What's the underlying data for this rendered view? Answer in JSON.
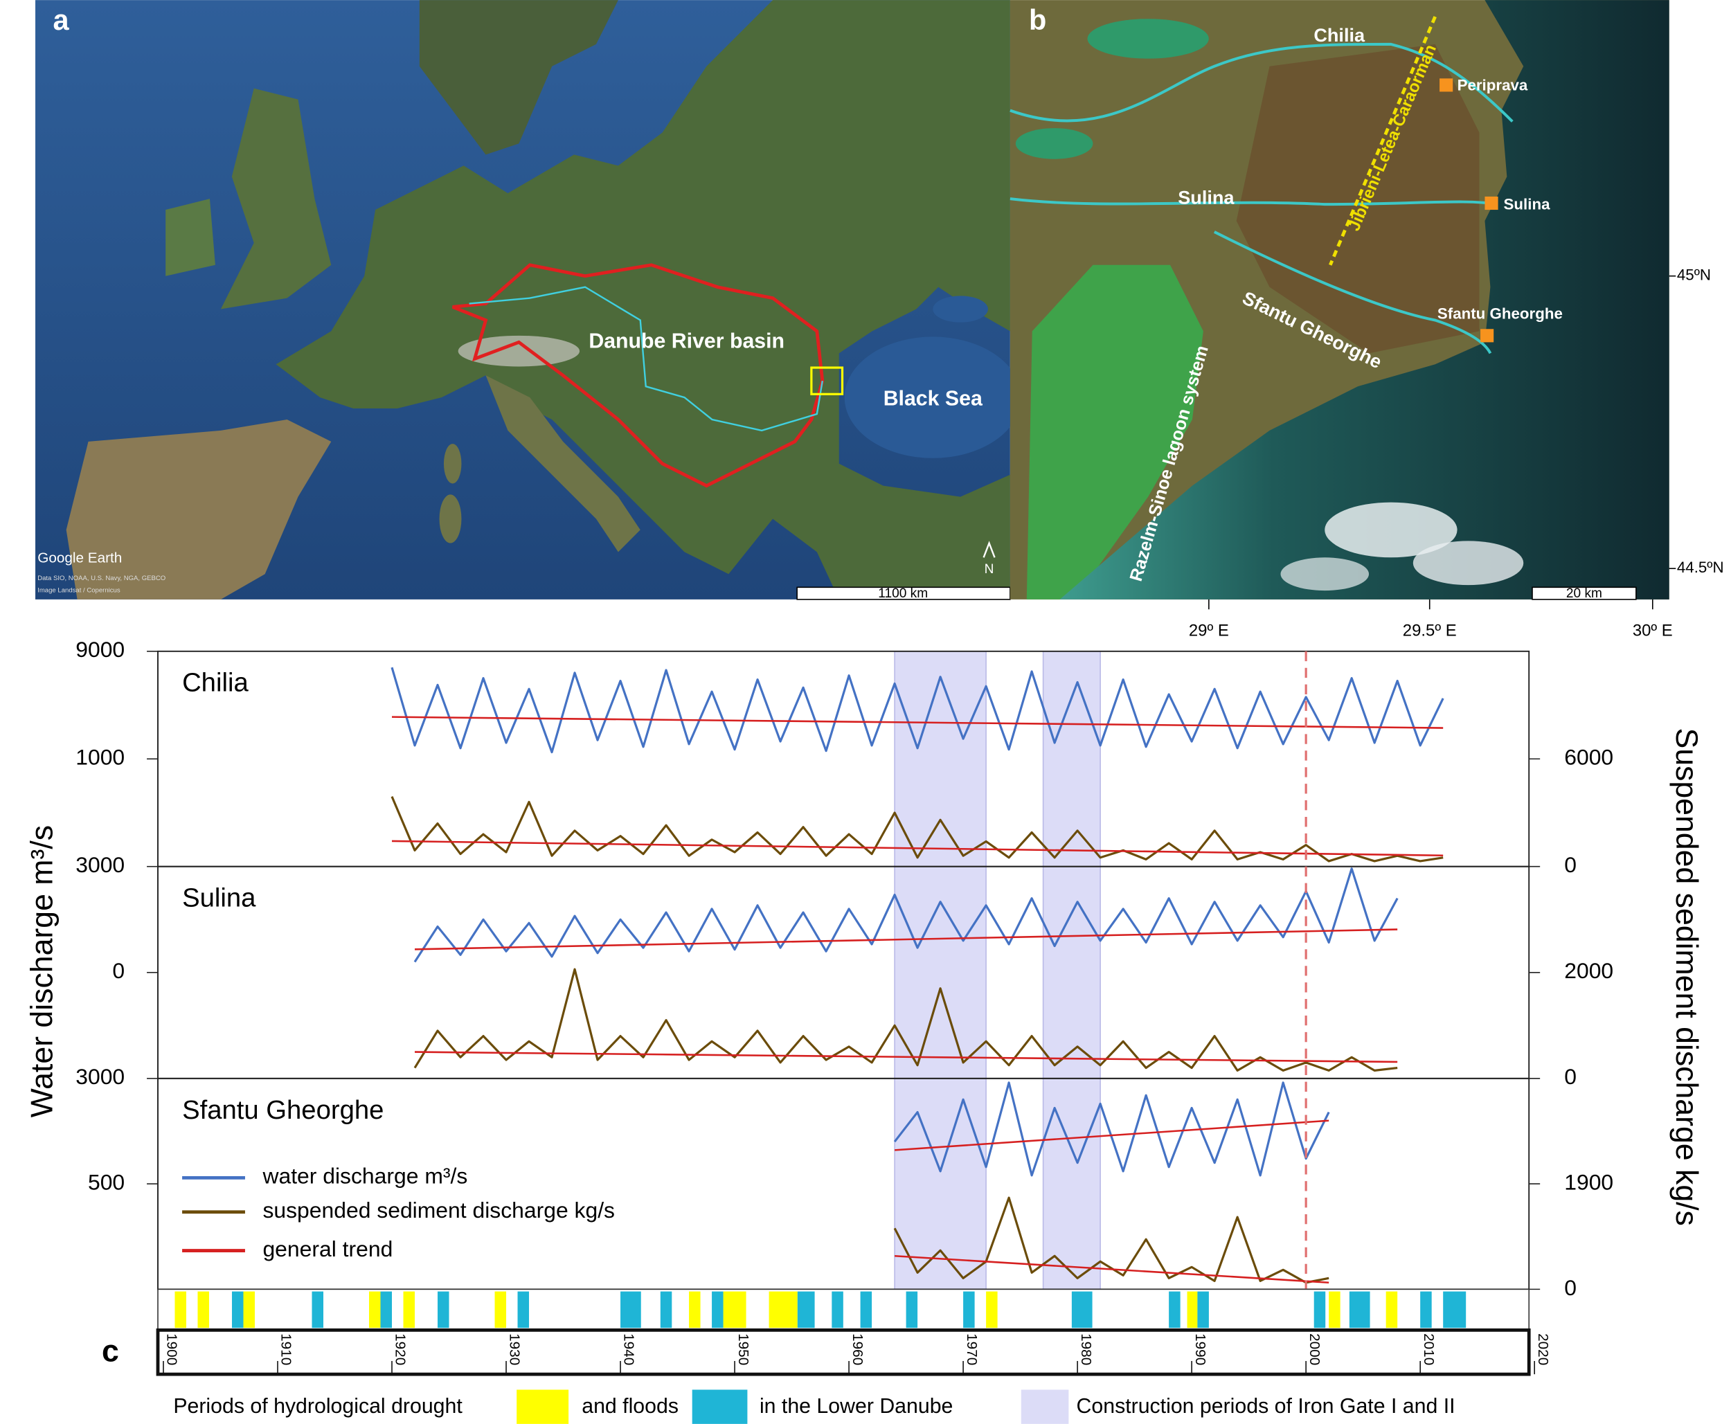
{
  "map_a": {
    "panel_label": "a",
    "basin_label": "Danube River basin",
    "sea_label": "Black Sea",
    "logo": "Google Earth",
    "credits": [
      "Data SIO, NOAA, U.S. Navy, NGA, GEBCO",
      "Image Landsat / Copernicus"
    ],
    "north": "N",
    "scale_bar": "1100 km"
  },
  "map_b": {
    "panel_label": "b",
    "branch_labels": [
      "Chilia",
      "Sulina",
      "Sfantu Gheorghe"
    ],
    "station_labels": [
      "Periprava",
      "Sulina",
      "Sfantu Gheorghe"
    ],
    "ridge_label": "Jibrieni-Letea-Caraorman",
    "lagoon_label": "Razelm-Sinoe lagoon system",
    "scale_bar": "20 km",
    "lat_ticks": [
      "45ºN",
      "44.5ºN"
    ],
    "lon_ticks": [
      "29º E",
      "29.5º E",
      "30º E"
    ]
  },
  "chart_data": {
    "type": "line",
    "panel_label": "c",
    "y_label": "Water discharge m³/s",
    "y2_label": "Suspended sediment discharge kg/s",
    "xlim": [
      1900,
      2020
    ],
    "xticks": [
      1900,
      1910,
      1920,
      1930,
      1940,
      1950,
      1960,
      1970,
      1980,
      1990,
      2000,
      2010,
      2020
    ],
    "series_styles": [
      {
        "name": "water discharge m³/s",
        "color": "#4472c4"
      },
      {
        "name": "suspended sediment discharge kg/s",
        "color": "#6b4c0a"
      },
      {
        "name": "general trend",
        "color": "#d62020"
      }
    ],
    "iron_gate_periods": [
      [
        1964,
        1972
      ],
      [
        1977,
        1982
      ]
    ],
    "iron_gate_color": "#dcdcf7",
    "reference_line": 2000,
    "drought_color": "#ffff00",
    "drought_periods": [
      [
        1901,
        1902
      ],
      [
        1903,
        1904
      ],
      [
        1907,
        1908
      ],
      [
        1918,
        1919
      ],
      [
        1921,
        1922
      ],
      [
        1929,
        1930
      ],
      [
        1946,
        1947
      ],
      [
        1949,
        1951
      ],
      [
        1953,
        1955.5
      ],
      [
        1972,
        1973
      ],
      [
        1989.6,
        1990.5
      ],
      [
        2002,
        2003
      ],
      [
        2007,
        2008
      ]
    ],
    "flood_color": "#1fb5d6",
    "flood_periods": [
      [
        1906,
        1907
      ],
      [
        1913,
        1914
      ],
      [
        1919,
        1920
      ],
      [
        1924,
        1925
      ],
      [
        1931,
        1932
      ],
      [
        1940,
        1941.8
      ],
      [
        1943.5,
        1944.5
      ],
      [
        1948,
        1949
      ],
      [
        1955.5,
        1957
      ],
      [
        1958.5,
        1959.5
      ],
      [
        1961,
        1962
      ],
      [
        1965,
        1966
      ],
      [
        1970,
        1971
      ],
      [
        1979.5,
        1981.3
      ],
      [
        1988,
        1989
      ],
      [
        1990.5,
        1991.5
      ],
      [
        2000.7,
        2001.7
      ],
      [
        2003.8,
        2005.6
      ],
      [
        2010,
        2011
      ],
      [
        2012,
        2014
      ]
    ],
    "bottom_legend": [
      "Periods of hydrological drought",
      "and floods",
      "in the Lower Danube",
      "Construction periods of Iron Gate I and II"
    ],
    "panels": [
      {
        "title": "Chilia",
        "ylim": [
          -7000,
          9000
        ],
        "yticks": [
          1000,
          9000
        ],
        "y2lim": [
          0,
          12000
        ],
        "y2ticks": [
          0,
          6000
        ],
        "x": [
          1920,
          1922,
          1924,
          1926,
          1928,
          1930,
          1932,
          1934,
          1936,
          1938,
          1940,
          1942,
          1944,
          1946,
          1948,
          1950,
          1952,
          1954,
          1956,
          1958,
          1960,
          1962,
          1964,
          1966,
          1968,
          1970,
          1972,
          1974,
          1976,
          1978,
          1980,
          1982,
          1984,
          1986,
          1988,
          1990,
          1992,
          1994,
          1996,
          1998,
          2000,
          2002,
          2004,
          2006,
          2008,
          2010,
          2012
        ],
        "water": [
          7800,
          2000,
          6500,
          1800,
          7000,
          2200,
          6200,
          1500,
          7400,
          2400,
          6800,
          1900,
          7600,
          2100,
          6000,
          1700,
          6900,
          2300,
          6300,
          1600,
          7200,
          2000,
          6600,
          1800,
          7100,
          2500,
          6400,
          1700,
          7500,
          2200,
          6700,
          2000,
          6900,
          1900,
          5800,
          2300,
          6200,
          1800,
          6000,
          2100,
          5600,
          2400,
          7000,
          2200,
          6800,
          2000,
          5500
        ],
        "sediment": [
          3900,
          900,
          2400,
          700,
          1800,
          800,
          3600,
          600,
          2000,
          900,
          1700,
          700,
          2300,
          600,
          1500,
          800,
          1900,
          700,
          2200,
          600,
          1800,
          700,
          3000,
          500,
          2600,
          600,
          1400,
          500,
          1900,
          500,
          2000,
          500,
          900,
          400,
          1300,
          400,
          2000,
          400,
          800,
          400,
          1200,
          300,
          700,
          300,
          600,
          300,
          500
        ],
        "trend_x": [
          1920,
          2012
        ],
        "water_trend": [
          4120,
          3300
        ],
        "sediment_trend": [
          1420,
          615
        ]
      },
      {
        "title": "Sulina",
        "ylim": [
          -3000,
          3000
        ],
        "yticks": [
          0,
          3000
        ],
        "y2lim": [
          0,
          4000
        ],
        "y2ticks": [
          0,
          2000
        ],
        "x": [
          1922,
          1924,
          1926,
          1928,
          1930,
          1932,
          1934,
          1936,
          1938,
          1940,
          1942,
          1944,
          1946,
          1948,
          1950,
          1952,
          1954,
          1956,
          1958,
          1960,
          1962,
          1964,
          1966,
          1968,
          1970,
          1972,
          1974,
          1976,
          1978,
          1980,
          1982,
          1984,
          1986,
          1988,
          1990,
          1992,
          1994,
          1996,
          1998,
          2000,
          2002,
          2004,
          2006,
          2008
        ],
        "water": [
          300,
          1300,
          500,
          1500,
          600,
          1400,
          450,
          1600,
          550,
          1500,
          700,
          1700,
          600,
          1800,
          650,
          1900,
          700,
          1700,
          600,
          1800,
          800,
          2200,
          700,
          2000,
          900,
          1900,
          800,
          2100,
          750,
          2000,
          900,
          1800,
          850,
          2100,
          800,
          2000,
          900,
          1900,
          1000,
          2300,
          850,
          2940,
          900,
          2100
        ],
        "sediment": [
          200,
          900,
          400,
          800,
          350,
          700,
          400,
          2060,
          350,
          800,
          400,
          1100,
          350,
          700,
          400,
          900,
          300,
          800,
          350,
          600,
          300,
          1000,
          250,
          1700,
          300,
          700,
          250,
          800,
          250,
          600,
          250,
          700,
          200,
          500,
          200,
          800,
          150,
          400,
          150,
          300,
          150,
          400,
          150,
          200
        ],
        "trend_x": [
          1922,
          2008
        ],
        "water_trend": [
          656,
          1219
        ],
        "sediment_trend": [
          500,
          312
        ]
      },
      {
        "title": "Sfantu Gheorghe",
        "ylim": [
          -2000,
          3000
        ],
        "yticks": [
          500,
          3000
        ],
        "y2lim": [
          0,
          3800
        ],
        "y2ticks": [
          0,
          1900
        ],
        "x": [
          1964,
          1966,
          1968,
          1970,
          1972,
          1974,
          1976,
          1978,
          1980,
          1982,
          1984,
          1986,
          1988,
          1990,
          1992,
          1994,
          1996,
          1998,
          2000,
          2002
        ],
        "water": [
          1500,
          2200,
          800,
          2500,
          900,
          2900,
          700,
          2300,
          1000,
          2400,
          800,
          2600,
          900,
          2300,
          1000,
          2500,
          700,
          2900,
          1100,
          2200
        ],
        "sediment": [
          1100,
          300,
          700,
          200,
          500,
          1650,
          300,
          600,
          200,
          500,
          250,
          900,
          200,
          400,
          150,
          1300,
          150,
          350,
          120,
          200
        ],
        "trend_x": [
          1964,
          2002
        ],
        "water_trend": [
          1300,
          2000
        ],
        "sediment_trend": [
          600,
          120
        ]
      }
    ]
  }
}
